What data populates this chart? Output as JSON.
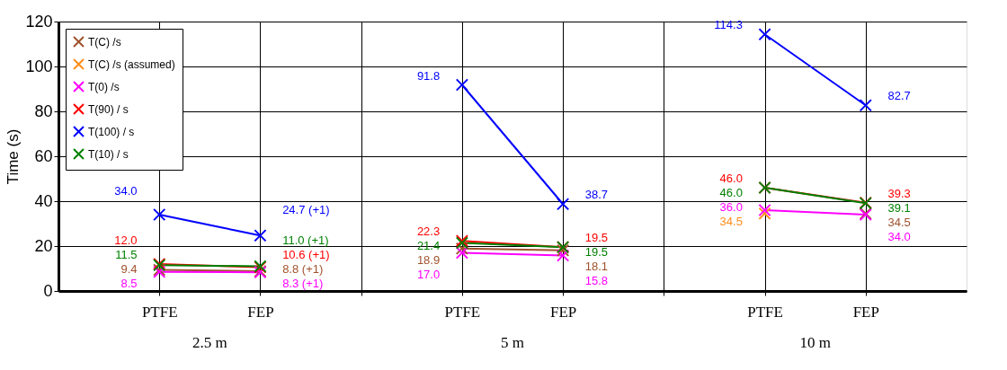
{
  "chart_data": {
    "type": "line",
    "ylabel": "Time (s)",
    "categories": [
      "PTFE",
      "FEP",
      null,
      "PTFE",
      "FEP",
      null,
      "PTFE",
      "FEP"
    ],
    "annotations": [
      "2.5 m",
      "5 m",
      "10 m"
    ],
    "ylim": [
      0,
      120
    ],
    "yticks": [
      0,
      20,
      40,
      60,
      80,
      100,
      120
    ],
    "grid": true,
    "legend": "top left",
    "marker": "cross",
    "line_style": "solid",
    "series": [
      {
        "name": "T(C) /s",
        "color": "#a0522d",
        "values": [
          9.4,
          8.8,
          null,
          18.9,
          18.1,
          null,
          null,
          34.5
        ],
        "value_labels": [
          "9.4",
          "8.8 (+1)",
          null,
          "18.9",
          "18.1",
          null,
          null,
          "34.5"
        ]
      },
      {
        "name": "T(C) /s (assumed)",
        "color": "#ff8c1a",
        "values": [
          null,
          null,
          null,
          null,
          null,
          null,
          34.5,
          null
        ],
        "value_labels": [
          null,
          null,
          null,
          null,
          null,
          null,
          "34.5",
          null
        ]
      },
      {
        "name": "T(0) /s",
        "color": "#ff00ff",
        "values": [
          8.5,
          8.3,
          null,
          17.0,
          15.8,
          null,
          36.0,
          34.0
        ],
        "value_labels": [
          "8.5",
          "8.3 (+1)",
          null,
          "17.0",
          "15.8",
          null,
          "36.0",
          "34.0"
        ]
      },
      {
        "name": "T(90) / s",
        "color": "#ff0000",
        "values": [
          12.0,
          10.6,
          null,
          22.3,
          19.5,
          null,
          46.0,
          39.3
        ],
        "value_labels": [
          "12.0",
          "10.6 (+1)",
          null,
          "22.3",
          "19.5",
          null,
          "46.0",
          "39.3"
        ]
      },
      {
        "name": "T(100) / s",
        "color": "#0000ff",
        "values": [
          34.0,
          24.7,
          null,
          91.8,
          38.7,
          null,
          114.3,
          82.7
        ],
        "value_labels": [
          "34.0",
          "24.7 (+1)",
          null,
          "91.8",
          "38.7",
          null,
          "114.3",
          "82.7"
        ]
      },
      {
        "name": "T(10) / s",
        "color": "#008000",
        "values": [
          11.5,
          11.0,
          null,
          21.4,
          19.5,
          null,
          46.0,
          39.1
        ],
        "value_labels": [
          "11.5",
          "11.0 (+1)",
          null,
          "21.4",
          "19.5",
          null,
          "46.0",
          "39.1"
        ]
      }
    ]
  }
}
